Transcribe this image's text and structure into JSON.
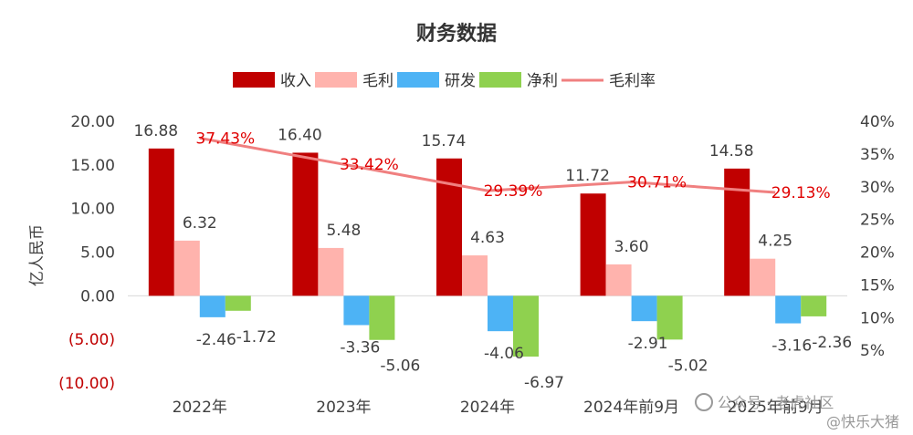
{
  "chart_data": {
    "type": "bar",
    "title": "财务数据",
    "ylabel": "亿人民币",
    "categories": [
      "2022年",
      "2023年",
      "2024年",
      "2024年前9月",
      "2025年前9月"
    ],
    "series": [
      {
        "name": "收入",
        "values": [
          16.88,
          16.4,
          15.74,
          11.72,
          14.58
        ],
        "labels": [
          "16.88",
          "16.40",
          "15.74",
          "11.72",
          "14.58"
        ],
        "color": "#c00000"
      },
      {
        "name": "毛利",
        "values": [
          6.32,
          5.48,
          4.63,
          3.6,
          4.25
        ],
        "labels": [
          "6.32",
          "5.48",
          "4.63",
          "3.60",
          "4.25"
        ],
        "color": "#ffb3ad"
      },
      {
        "name": "研发",
        "values": [
          -2.46,
          -3.36,
          -4.06,
          -2.91,
          -3.16
        ],
        "labels": [
          "-2.46",
          "-3.36",
          "-4.06",
          "-2.91",
          "-3.16"
        ],
        "color": "#4db3f5"
      },
      {
        "name": "净利",
        "values": [
          -1.72,
          -5.06,
          -6.97,
          -5.02,
          -2.36
        ],
        "labels": [
          "-1.72",
          "-5.06",
          "-6.97",
          "-5.02",
          "-2.36"
        ],
        "color": "#8fd14f"
      }
    ],
    "line_series": {
      "name": "毛利率",
      "axis": "right",
      "values": [
        37.43,
        33.42,
        29.39,
        30.71,
        29.13
      ],
      "labels": [
        "37.43%",
        "33.42%",
        "29.39%",
        "30.71%",
        "29.13%"
      ],
      "color": "#f08080"
    },
    "ylim": [
      -10,
      20
    ],
    "y_ticks": [
      "20.00",
      "15.00",
      "10.00",
      "5.00",
      "0.00",
      "(5.00)",
      "(10.00)"
    ],
    "y2lim": [
      0,
      40
    ],
    "y2_ticks": [
      "40%",
      "35%",
      "30%",
      "25%",
      "20%",
      "15%",
      "10%",
      "5%"
    ],
    "legend_position": "top-center",
    "grid": false
  },
  "watermark": {
    "channel": "公众号 · 老虎社区",
    "author": "@快乐大猪"
  }
}
